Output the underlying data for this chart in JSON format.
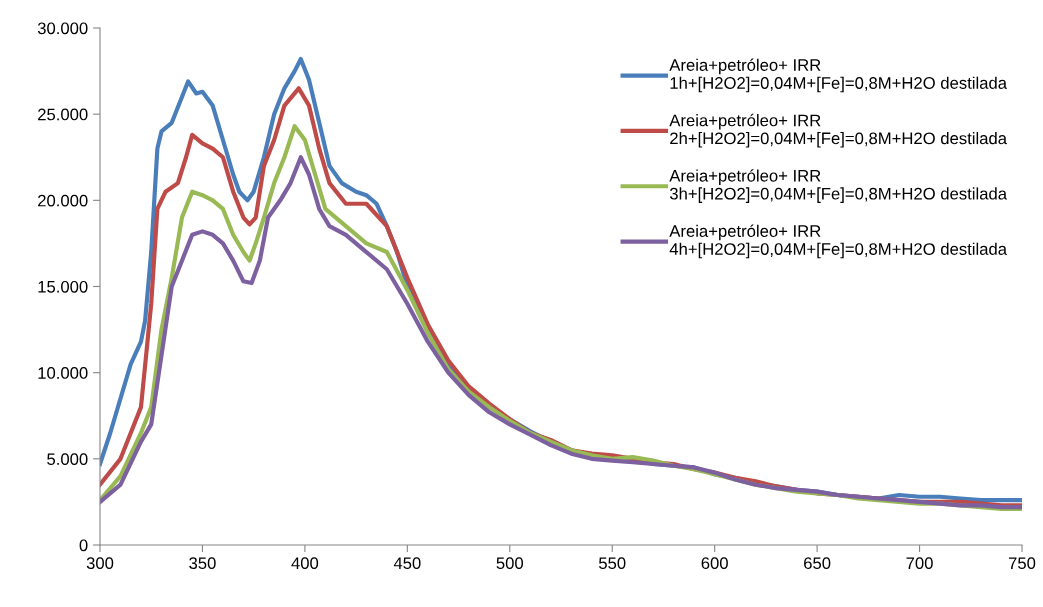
{
  "chart_data": {
    "type": "line",
    "xlim": [
      300,
      750
    ],
    "xticks": [
      300,
      350,
      400,
      450,
      500,
      550,
      600,
      650,
      700,
      750
    ],
    "ylim": [
      0,
      30000
    ],
    "yticks": [
      0,
      {
        "value": 5000,
        "label": "5.000"
      },
      {
        "value": 10000,
        "label": "10.000"
      },
      {
        "value": 15000,
        "label": "15.000"
      },
      {
        "value": 20000,
        "label": "20.000"
      },
      {
        "value": 25000,
        "label": "25.000"
      },
      {
        "value": 30000,
        "label": "30.000"
      }
    ],
    "grid": false,
    "legend": "top right",
    "marker": "none",
    "line_style": "solid",
    "series": [
      {
        "name": "Areia+petróleo+ IRR\n1h+[H2O2]=0,04M+[Fe]=0,8M+H2O destilada",
        "color": "#4a7ebb",
        "x": [
          300,
          305,
          310,
          315,
          320,
          322,
          325,
          328,
          330,
          335,
          340,
          343,
          347,
          350,
          355,
          360,
          365,
          368,
          372,
          375,
          380,
          385,
          390,
          395,
          398,
          402,
          407,
          412,
          418,
          425,
          430,
          435,
          440,
          445,
          450,
          460,
          470,
          480,
          490,
          500,
          510,
          520,
          530,
          540,
          550,
          560,
          570,
          580,
          590,
          600,
          610,
          620,
          630,
          640,
          650,
          660,
          670,
          680,
          690,
          700,
          710,
          720,
          730,
          740,
          750
        ],
        "values": [
          4700,
          6500,
          8500,
          10500,
          11800,
          13000,
          17000,
          23000,
          24000,
          24500,
          26000,
          26900,
          26200,
          26300,
          25500,
          23500,
          21500,
          20500,
          20000,
          20500,
          22500,
          25000,
          26500,
          27500,
          28200,
          27000,
          24500,
          22000,
          21000,
          20500,
          20300,
          19800,
          18500,
          17000,
          15000,
          12500,
          10500,
          9000,
          8000,
          7300,
          6600,
          6000,
          5500,
          5200,
          5100,
          5000,
          4700,
          4600,
          4500,
          4100,
          3900,
          3600,
          3400,
          3200,
          3100,
          2900,
          2800,
          2700,
          2900,
          2800,
          2800,
          2700,
          2600,
          2600,
          2600
        ]
      },
      {
        "name": "Areia+petróleo+ IRR\n2h+[H2O2]=0,04M+[Fe]=0,8M+H2O destilada",
        "color": "#be4b48",
        "x": [
          300,
          310,
          315,
          320,
          325,
          328,
          332,
          338,
          342,
          345,
          350,
          355,
          360,
          365,
          370,
          373,
          376,
          380,
          385,
          390,
          397,
          402,
          407,
          412,
          420,
          430,
          440,
          450,
          460,
          470,
          480,
          490,
          500,
          510,
          520,
          530,
          540,
          550,
          560,
          570,
          580,
          590,
          600,
          610,
          620,
          630,
          640,
          650,
          660,
          670,
          680,
          690,
          700,
          710,
          720,
          730,
          740,
          750
        ],
        "values": [
          3500,
          5000,
          6500,
          8000,
          14000,
          19500,
          20500,
          21000,
          22500,
          23800,
          23300,
          23000,
          22500,
          20500,
          19000,
          18600,
          19000,
          22000,
          23500,
          25500,
          26500,
          25500,
          23000,
          21000,
          19800,
          19800,
          18500,
          15500,
          12800,
          10700,
          9200,
          8200,
          7300,
          6500,
          6100,
          5500,
          5300,
          5200,
          5000,
          4800,
          4700,
          4400,
          4200,
          3900,
          3700,
          3400,
          3200,
          3000,
          2900,
          2800,
          2700,
          2600,
          2500,
          2500,
          2500,
          2400,
          2300,
          2300
        ]
      },
      {
        "name": "Areia+petróleo+ IRR\n3h+[H2O2]=0,04M+[Fe]=0,8M+H2O destilada",
        "color": "#98b954",
        "x": [
          300,
          310,
          320,
          325,
          330,
          335,
          340,
          345,
          350,
          355,
          360,
          365,
          370,
          373,
          376,
          380,
          385,
          390,
          395,
          400,
          405,
          410,
          420,
          430,
          440,
          450,
          460,
          470,
          480,
          490,
          500,
          510,
          520,
          530,
          540,
          550,
          560,
          570,
          580,
          590,
          600,
          610,
          620,
          630,
          640,
          650,
          660,
          670,
          680,
          690,
          700,
          710,
          720,
          730,
          740,
          750
        ],
        "values": [
          2600,
          4000,
          6500,
          8000,
          12500,
          15500,
          19000,
          20500,
          20300,
          20000,
          19500,
          18000,
          17000,
          16500,
          17500,
          19000,
          21000,
          22500,
          24300,
          23500,
          21500,
          19500,
          18500,
          17500,
          17000,
          14800,
          12300,
          10200,
          8900,
          8000,
          7200,
          6500,
          6000,
          5500,
          5200,
          5000,
          5100,
          4900,
          4600,
          4400,
          4100,
          3800,
          3500,
          3300,
          3100,
          3000,
          2900,
          2700,
          2600,
          2500,
          2400,
          2400,
          2300,
          2200,
          2100,
          2100
        ]
      },
      {
        "name": "Areia+petróleo+ IRR\n4h+[H2O2]=0,04M+[Fe]=0,8M+H2O destilada",
        "color": "#7d60a0",
        "x": [
          300,
          310,
          320,
          325,
          330,
          335,
          340,
          345,
          350,
          355,
          360,
          365,
          370,
          374,
          378,
          382,
          388,
          393,
          398,
          402,
          407,
          412,
          420,
          430,
          440,
          450,
          460,
          470,
          480,
          490,
          500,
          510,
          520,
          530,
          540,
          550,
          560,
          570,
          580,
          590,
          600,
          610,
          620,
          630,
          640,
          650,
          660,
          670,
          680,
          690,
          700,
          710,
          720,
          730,
          740,
          750
        ],
        "values": [
          2500,
          3500,
          6000,
          7000,
          11000,
          15000,
          16500,
          18000,
          18200,
          18000,
          17500,
          16500,
          15300,
          15200,
          16500,
          19000,
          20000,
          21000,
          22500,
          21500,
          19500,
          18500,
          18000,
          17000,
          16000,
          14000,
          11800,
          10000,
          8700,
          7700,
          7000,
          6400,
          5800,
          5300,
          5000,
          4900,
          4800,
          4700,
          4600,
          4500,
          4200,
          3800,
          3500,
          3300,
          3200,
          3100,
          2900,
          2800,
          2700,
          2600,
          2500,
          2400,
          2300,
          2300,
          2200,
          2200
        ]
      }
    ]
  }
}
